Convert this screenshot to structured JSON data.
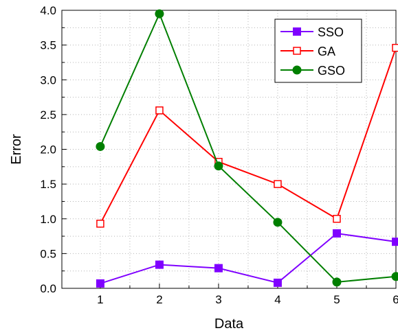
{
  "chart_data": {
    "type": "line",
    "title": "",
    "xlabel": "Data",
    "ylabel": "Error",
    "x": [
      1,
      2,
      3,
      4,
      5,
      6
    ],
    "xlim": [
      0.35,
      6
    ],
    "ylim": [
      0.0,
      4.0
    ],
    "x_ticks": [
      "1",
      "2",
      "3",
      "4",
      "5",
      "6"
    ],
    "y_ticks": [
      "0.0",
      "0.5",
      "1.0",
      "1.5",
      "2.0",
      "2.5",
      "3.0",
      "3.5",
      "4.0"
    ],
    "grid": true,
    "legend_position": "top-right",
    "series": [
      {
        "name": "SSO",
        "color": "#7f00ff",
        "marker": "filled-square",
        "values": [
          0.07,
          0.34,
          0.29,
          0.08,
          0.79,
          0.67
        ]
      },
      {
        "name": "GA",
        "color": "#ff0000",
        "marker": "open-square",
        "values": [
          0.93,
          2.56,
          1.82,
          1.5,
          1.0,
          3.46
        ]
      },
      {
        "name": "GSO",
        "color": "#007f00",
        "marker": "filled-circle",
        "values": [
          2.04,
          3.95,
          1.76,
          0.95,
          0.09,
          0.17
        ]
      }
    ]
  }
}
